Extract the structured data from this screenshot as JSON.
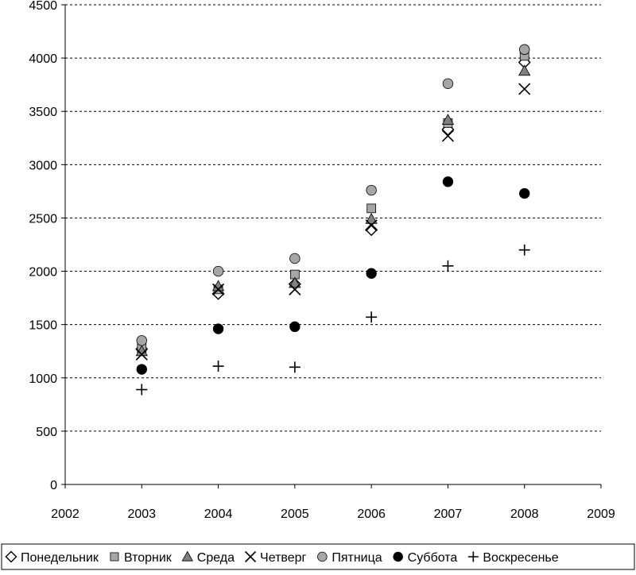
{
  "chart_data": {
    "type": "scatter",
    "title": "",
    "xlabel": "",
    "ylabel": "",
    "xlim": [
      2002,
      2009
    ],
    "ylim": [
      0,
      4500
    ],
    "x_ticks": [
      "2002",
      "2003",
      "2004",
      "2005",
      "2006",
      "2007",
      "2008",
      "2009"
    ],
    "y_ticks": [
      "0",
      "500",
      "1000",
      "1500",
      "2000",
      "2500",
      "3000",
      "3500",
      "4000",
      "4500"
    ],
    "grid": "horizontal-dotted",
    "legend_position": "bottom",
    "x": [
      2003,
      2004,
      2005,
      2006,
      2007,
      2008
    ],
    "series": [
      {
        "name": "Понедельник",
        "marker": "diamond",
        "color": "#ffffff",
        "values": [
          1270,
          1790,
          1880,
          2390,
          3330,
          3960
        ]
      },
      {
        "name": "Вторник",
        "marker": "square",
        "color": "#a6a6a6",
        "values": [
          1280,
          1830,
          1970,
          2590,
          3390,
          4020
        ]
      },
      {
        "name": "Среда",
        "marker": "triangle",
        "color": "#808080",
        "values": [
          1250,
          1860,
          1890,
          2490,
          3420,
          3880
        ]
      },
      {
        "name": "Четверг",
        "marker": "x",
        "color": "#000000",
        "values": [
          1220,
          1830,
          1830,
          2430,
          3270,
          3710
        ]
      },
      {
        "name": "Пятница",
        "marker": "circle",
        "color": "#a6a6a6",
        "values": [
          1350,
          2000,
          2120,
          2760,
          3760,
          4080
        ]
      },
      {
        "name": "Суббота",
        "marker": "circle",
        "color": "#000000",
        "values": [
          1080,
          1460,
          1480,
          1980,
          2840,
          2730
        ]
      },
      {
        "name": "Воскресенье",
        "marker": "plus",
        "color": "#000000",
        "values": [
          890,
          1110,
          1100,
          1570,
          2050,
          2200
        ]
      }
    ]
  }
}
